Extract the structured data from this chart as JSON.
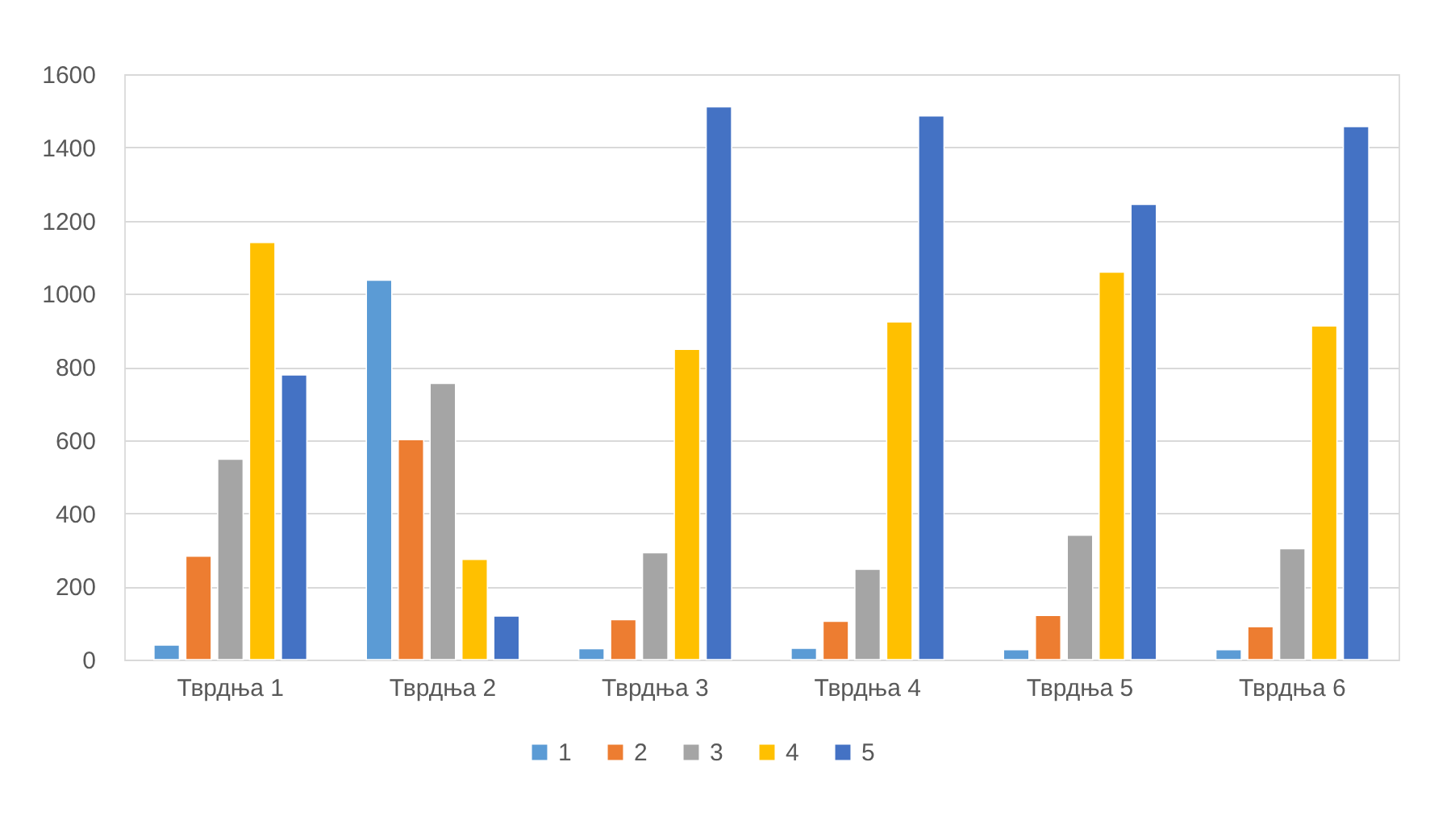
{
  "chart_data": {
    "type": "bar",
    "categories": [
      "Тврдња 1",
      "Тврдња 2",
      "Тврдња 3",
      "Тврдња 4",
      "Тврдња 5",
      "Тврдња 6"
    ],
    "series": [
      {
        "name": "1",
        "color": "#5b9bd5",
        "values": [
          40,
          1037,
          30,
          31,
          27,
          27
        ]
      },
      {
        "name": "2",
        "color": "#ed7d31",
        "values": [
          283,
          601,
          109,
          105,
          121,
          90
        ]
      },
      {
        "name": "3",
        "color": "#a5a5a5",
        "values": [
          548,
          755,
          292,
          247,
          340,
          303
        ]
      },
      {
        "name": "4",
        "color": "#ffc000",
        "values": [
          1140,
          274,
          848,
          923,
          1059,
          912
        ]
      },
      {
        "name": "5",
        "color": "#4472c4",
        "values": [
          778,
          119,
          1511,
          1486,
          1244,
          1457
        ]
      }
    ],
    "ylim": [
      0,
      1600
    ],
    "yticks": [
      0,
      200,
      400,
      600,
      800,
      1000,
      1200,
      1400,
      1600
    ],
    "grid": "y",
    "legend": "bottom"
  }
}
